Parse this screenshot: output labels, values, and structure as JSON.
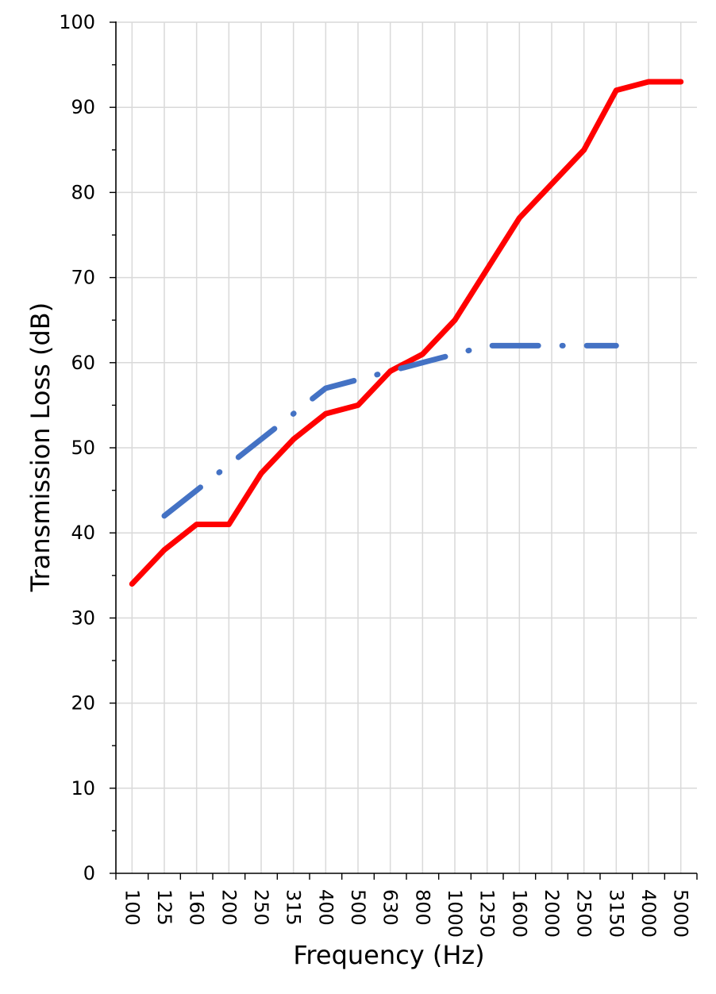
{
  "chart_data": {
    "type": "line",
    "title": "",
    "xlabel": "Frequency (Hz)",
    "ylabel": "Transmission Loss (dB)",
    "ylim": [
      0,
      100
    ],
    "y_major_step": 10,
    "y_minor_step": 5,
    "grid": true,
    "categories": [
      "100",
      "125",
      "160",
      "200",
      "250",
      "315",
      "400",
      "500",
      "630",
      "800",
      "1000",
      "1250",
      "1600",
      "2000",
      "2500",
      "3150",
      "4000",
      "5000"
    ],
    "series": [
      {
        "color": "#ff0000",
        "style": "solid",
        "values": [
          34,
          38,
          41,
          41,
          47,
          51,
          54,
          55,
          59,
          61,
          65,
          71,
          77,
          81,
          85,
          92,
          93,
          93
        ]
      },
      {
        "color": "#4472c4",
        "style": "dash-dot",
        "values": [
          null,
          42,
          45,
          48,
          51,
          54,
          57,
          58,
          59,
          60,
          61,
          62,
          62,
          62,
          62,
          62,
          null,
          null
        ]
      }
    ]
  }
}
